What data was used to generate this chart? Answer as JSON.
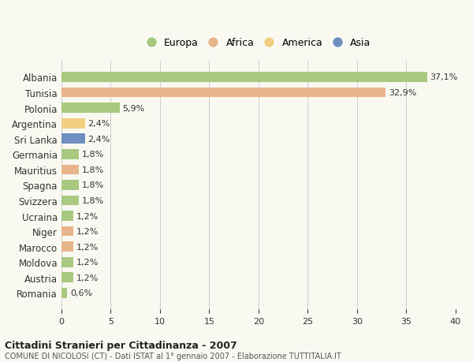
{
  "categories": [
    "Albania",
    "Tunisia",
    "Polonia",
    "Argentina",
    "Sri Lanka",
    "Germania",
    "Mauritius",
    "Spagna",
    "Svizzera",
    "Ucraina",
    "Niger",
    "Marocco",
    "Moldova",
    "Austria",
    "Romania"
  ],
  "values": [
    37.1,
    32.9,
    5.9,
    2.4,
    2.4,
    1.8,
    1.8,
    1.8,
    1.8,
    1.2,
    1.2,
    1.2,
    1.2,
    1.2,
    0.6
  ],
  "labels": [
    "37,1%",
    "32,9%",
    "5,9%",
    "2,4%",
    "2,4%",
    "1,8%",
    "1,8%",
    "1,8%",
    "1,8%",
    "1,2%",
    "1,2%",
    "1,2%",
    "1,2%",
    "1,2%",
    "0,6%"
  ],
  "colors": [
    "#a8c97f",
    "#e8b48a",
    "#a8c97f",
    "#f0d080",
    "#6e8fc0",
    "#a8c97f",
    "#e8b48a",
    "#a8c97f",
    "#a8c97f",
    "#a8c97f",
    "#e8b48a",
    "#e8b48a",
    "#a8c97f",
    "#a8c97f",
    "#a8c97f"
  ],
  "legend": [
    {
      "label": "Europa",
      "color": "#a8c97f"
    },
    {
      "label": "Africa",
      "color": "#e8b48a"
    },
    {
      "label": "America",
      "color": "#f0d080"
    },
    {
      "label": "Asia",
      "color": "#6e8fc0"
    }
  ],
  "xlim": [
    0,
    40
  ],
  "xticks": [
    0,
    5,
    10,
    15,
    20,
    25,
    30,
    35,
    40
  ],
  "title": "Cittadini Stranieri per Cittadinanza - 2007",
  "subtitle": "COMUNE DI NICOLOSI (CT) - Dati ISTAT al 1° gennaio 2007 - Elaborazione TUTTITALIA.IT",
  "background_color": "#f9f9f2",
  "grid_color": "#cccccc"
}
